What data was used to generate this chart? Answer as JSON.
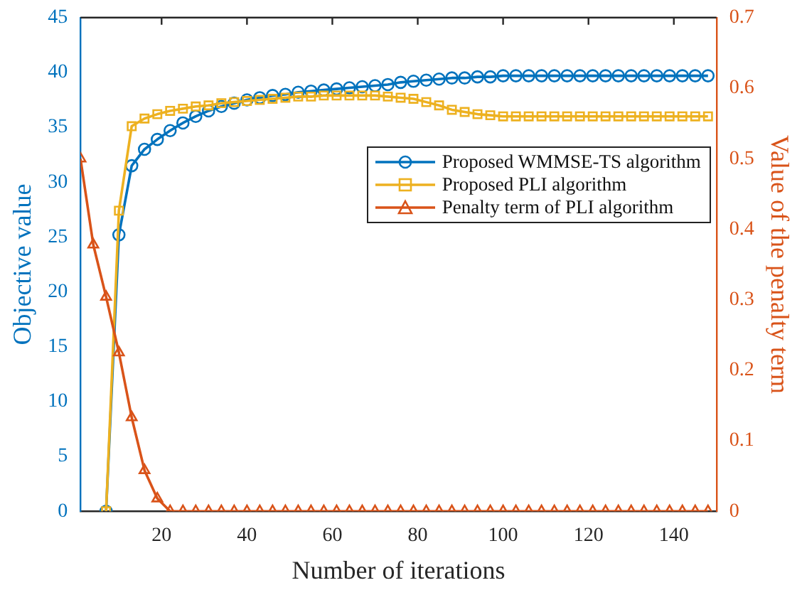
{
  "chart_data": {
    "type": "line",
    "xlabel": "Number of iterations",
    "ylabel": "Objective value",
    "y2label": "Value of the penalty term",
    "x": [
      1,
      4,
      7,
      10,
      13,
      16,
      19,
      22,
      25,
      28,
      31,
      34,
      37,
      40,
      43,
      46,
      49,
      52,
      55,
      58,
      61,
      64,
      67,
      70,
      73,
      76,
      79,
      82,
      85,
      88,
      91,
      94,
      97,
      100,
      103,
      106,
      109,
      112,
      115,
      118,
      121,
      124,
      127,
      130,
      133,
      136,
      139,
      142,
      145,
      148
    ],
    "series": [
      {
        "name": "Proposed WMMSE-TS algorithm",
        "color": "#0072bd",
        "marker": "circle",
        "values": [
          null,
          null,
          0,
          25.2,
          31.5,
          33,
          33.9,
          34.7,
          35.4,
          36,
          36.5,
          36.9,
          37.2,
          37.5,
          37.7,
          37.9,
          38.0,
          38.2,
          38.3,
          38.4,
          38.5,
          38.6,
          38.7,
          38.8,
          38.9,
          39.1,
          39.2,
          39.3,
          39.4,
          39.5,
          39.5,
          39.6,
          39.6,
          39.7,
          39.7,
          39.7,
          39.7,
          39.7,
          39.7,
          39.7,
          39.7,
          39.7,
          39.7,
          39.7,
          39.7,
          39.7,
          39.7,
          39.7,
          39.7,
          39.7
        ]
      },
      {
        "name": "Proposed PLI algorithm",
        "color": "#edb120",
        "marker": "square",
        "values": [
          null,
          null,
          0,
          27.4,
          35.1,
          35.8,
          36.2,
          36.5,
          36.7,
          36.9,
          37.0,
          37.2,
          37.3,
          37.4,
          37.5,
          37.6,
          37.7,
          37.8,
          37.8,
          37.9,
          37.9,
          37.9,
          37.9,
          37.9,
          37.8,
          37.7,
          37.6,
          37.3,
          37.0,
          36.6,
          36.4,
          36.2,
          36.1,
          36.0,
          36.0,
          36.0,
          36.0,
          36.0,
          36.0,
          36.0,
          36.0,
          36.0,
          36.0,
          36.0,
          36.0,
          36.0,
          36.0,
          36.0,
          36.0,
          36.0
        ]
      },
      {
        "name": "Penalty term of PLI algorithm",
        "color": "#d95319",
        "marker": "triangle",
        "axis": "y2",
        "values": [
          0.5,
          0.378,
          0.304,
          0.225,
          0.133,
          0.058,
          0.018,
          0,
          0,
          0,
          0,
          0,
          0,
          0,
          0,
          0,
          0,
          0,
          0,
          0,
          0,
          0,
          0,
          0,
          0,
          0,
          0,
          0,
          0,
          0,
          0,
          0,
          0,
          0,
          0,
          0,
          0,
          0,
          0,
          0,
          0,
          0,
          0,
          0,
          0,
          0,
          0,
          0,
          0,
          0
        ]
      }
    ],
    "xlim": [
      1,
      150
    ],
    "xticks": [
      20,
      40,
      60,
      80,
      100,
      120,
      140
    ],
    "ylim": [
      0,
      45
    ],
    "yticks": [
      0,
      5,
      10,
      15,
      20,
      25,
      30,
      35,
      40,
      45
    ],
    "y2lim": [
      0,
      0.7
    ],
    "y2ticks": [
      0,
      0.1,
      0.2,
      0.3,
      0.4,
      0.5,
      0.6,
      0.7
    ],
    "grid": false,
    "legend": "right",
    "line_style": "solid"
  }
}
